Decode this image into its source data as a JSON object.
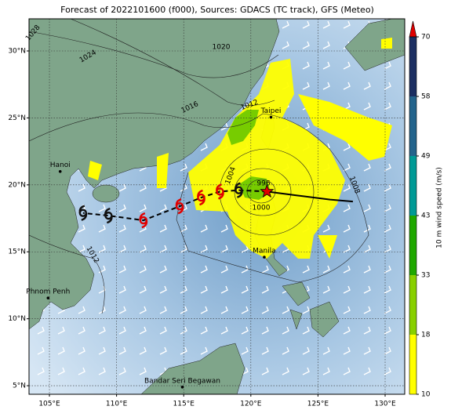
{
  "title": "Forecast of 2022101600 (f000), Sources: GDACS (TC track), GFS (Meteo)",
  "map": {
    "lon_range": [
      103.48,
      131.46
    ],
    "lat_range": [
      4.36,
      32.4
    ],
    "lon_ticks": [
      {
        "value": 105,
        "label": "105°E"
      },
      {
        "value": 110,
        "label": "110°E"
      },
      {
        "value": 115,
        "label": "115°E"
      },
      {
        "value": 120,
        "label": "120°E"
      },
      {
        "value": 125,
        "label": "125°E"
      },
      {
        "value": 130,
        "label": "130°E"
      }
    ],
    "lat_ticks": [
      {
        "value": 5,
        "label": "5°N"
      },
      {
        "value": 10,
        "label": "10°N"
      },
      {
        "value": 15,
        "label": "15°N"
      },
      {
        "value": 20,
        "label": "20°N"
      },
      {
        "value": 25,
        "label": "25°N"
      },
      {
        "value": 30,
        "label": "30°N"
      }
    ],
    "grid": true,
    "cities": [
      {
        "name": "Taipei",
        "lon": 121.5,
        "lat": 25.05
      },
      {
        "name": "Hanoi",
        "lon": 105.8,
        "lat": 21.0
      },
      {
        "name": "Manila",
        "lon": 121.0,
        "lat": 14.6
      },
      {
        "name": "Phnom Penh",
        "lon": 104.9,
        "lat": 11.55
      },
      {
        "name": "Bandar Seri Begawan",
        "lon": 114.9,
        "lat": 4.9
      }
    ],
    "isobar_labels": [
      "1028",
      "1024",
      "1020",
      "1016",
      "1012",
      "1004",
      "996",
      "1000",
      "1008",
      "1012"
    ],
    "past_track": {
      "lon": [
        127.6,
        125.9,
        123.5,
        121.2
      ],
      "lat": [
        18.75,
        18.9,
        19.2,
        19.5
      ]
    },
    "forecast_track": {
      "lon": [
        121.2,
        119.1,
        117.7,
        116.3,
        114.7,
        112.0,
        109.4,
        107.5
      ],
      "lat": [
        19.5,
        19.6,
        19.5,
        19.05,
        18.4,
        17.35,
        17.7,
        17.9
      ],
      "colors": [
        "#e00000",
        "#111111",
        "#e00000",
        "#e00000",
        "#e00000",
        "#e00000",
        "#111111",
        "#111111"
      ]
    }
  },
  "colorbar": {
    "label": "10 m wind speed (m/s)",
    "ticks": [
      10,
      18,
      33,
      43,
      49,
      58,
      70
    ],
    "colors": [
      "#ffff00",
      "#88d000",
      "#1fa800",
      "#009a96",
      "#24648c",
      "#1c2f62"
    ],
    "extend_color": "#e00000"
  }
}
